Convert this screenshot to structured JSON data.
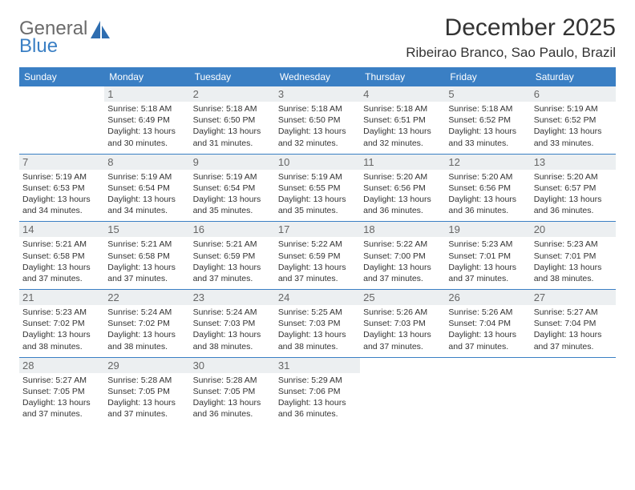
{
  "logo": {
    "general": "General",
    "blue": "Blue"
  },
  "title": "December 2025",
  "location": "Ribeirao Branco, Sao Paulo, Brazil",
  "colors": {
    "header_bg": "#3a7fc4",
    "header_text": "#ffffff",
    "daynum_bg": "#eceff1",
    "border": "#3a7fc4"
  },
  "weekdays": [
    "Sunday",
    "Monday",
    "Tuesday",
    "Wednesday",
    "Thursday",
    "Friday",
    "Saturday"
  ],
  "weeks": [
    [
      null,
      {
        "n": "1",
        "sr": "5:18 AM",
        "ss": "6:49 PM",
        "dl": "13 hours and 30 minutes."
      },
      {
        "n": "2",
        "sr": "5:18 AM",
        "ss": "6:50 PM",
        "dl": "13 hours and 31 minutes."
      },
      {
        "n": "3",
        "sr": "5:18 AM",
        "ss": "6:50 PM",
        "dl": "13 hours and 32 minutes."
      },
      {
        "n": "4",
        "sr": "5:18 AM",
        "ss": "6:51 PM",
        "dl": "13 hours and 32 minutes."
      },
      {
        "n": "5",
        "sr": "5:18 AM",
        "ss": "6:52 PM",
        "dl": "13 hours and 33 minutes."
      },
      {
        "n": "6",
        "sr": "5:19 AM",
        "ss": "6:52 PM",
        "dl": "13 hours and 33 minutes."
      }
    ],
    [
      {
        "n": "7",
        "sr": "5:19 AM",
        "ss": "6:53 PM",
        "dl": "13 hours and 34 minutes."
      },
      {
        "n": "8",
        "sr": "5:19 AM",
        "ss": "6:54 PM",
        "dl": "13 hours and 34 minutes."
      },
      {
        "n": "9",
        "sr": "5:19 AM",
        "ss": "6:54 PM",
        "dl": "13 hours and 35 minutes."
      },
      {
        "n": "10",
        "sr": "5:19 AM",
        "ss": "6:55 PM",
        "dl": "13 hours and 35 minutes."
      },
      {
        "n": "11",
        "sr": "5:20 AM",
        "ss": "6:56 PM",
        "dl": "13 hours and 36 minutes."
      },
      {
        "n": "12",
        "sr": "5:20 AM",
        "ss": "6:56 PM",
        "dl": "13 hours and 36 minutes."
      },
      {
        "n": "13",
        "sr": "5:20 AM",
        "ss": "6:57 PM",
        "dl": "13 hours and 36 minutes."
      }
    ],
    [
      {
        "n": "14",
        "sr": "5:21 AM",
        "ss": "6:58 PM",
        "dl": "13 hours and 37 minutes."
      },
      {
        "n": "15",
        "sr": "5:21 AM",
        "ss": "6:58 PM",
        "dl": "13 hours and 37 minutes."
      },
      {
        "n": "16",
        "sr": "5:21 AM",
        "ss": "6:59 PM",
        "dl": "13 hours and 37 minutes."
      },
      {
        "n": "17",
        "sr": "5:22 AM",
        "ss": "6:59 PM",
        "dl": "13 hours and 37 minutes."
      },
      {
        "n": "18",
        "sr": "5:22 AM",
        "ss": "7:00 PM",
        "dl": "13 hours and 37 minutes."
      },
      {
        "n": "19",
        "sr": "5:23 AM",
        "ss": "7:01 PM",
        "dl": "13 hours and 37 minutes."
      },
      {
        "n": "20",
        "sr": "5:23 AM",
        "ss": "7:01 PM",
        "dl": "13 hours and 38 minutes."
      }
    ],
    [
      {
        "n": "21",
        "sr": "5:23 AM",
        "ss": "7:02 PM",
        "dl": "13 hours and 38 minutes."
      },
      {
        "n": "22",
        "sr": "5:24 AM",
        "ss": "7:02 PM",
        "dl": "13 hours and 38 minutes."
      },
      {
        "n": "23",
        "sr": "5:24 AM",
        "ss": "7:03 PM",
        "dl": "13 hours and 38 minutes."
      },
      {
        "n": "24",
        "sr": "5:25 AM",
        "ss": "7:03 PM",
        "dl": "13 hours and 38 minutes."
      },
      {
        "n": "25",
        "sr": "5:26 AM",
        "ss": "7:03 PM",
        "dl": "13 hours and 37 minutes."
      },
      {
        "n": "26",
        "sr": "5:26 AM",
        "ss": "7:04 PM",
        "dl": "13 hours and 37 minutes."
      },
      {
        "n": "27",
        "sr": "5:27 AM",
        "ss": "7:04 PM",
        "dl": "13 hours and 37 minutes."
      }
    ],
    [
      {
        "n": "28",
        "sr": "5:27 AM",
        "ss": "7:05 PM",
        "dl": "13 hours and 37 minutes."
      },
      {
        "n": "29",
        "sr": "5:28 AM",
        "ss": "7:05 PM",
        "dl": "13 hours and 37 minutes."
      },
      {
        "n": "30",
        "sr": "5:28 AM",
        "ss": "7:05 PM",
        "dl": "13 hours and 36 minutes."
      },
      {
        "n": "31",
        "sr": "5:29 AM",
        "ss": "7:06 PM",
        "dl": "13 hours and 36 minutes."
      },
      null,
      null,
      null
    ]
  ],
  "labels": {
    "sunrise": "Sunrise:",
    "sunset": "Sunset:",
    "daylight": "Daylight:"
  }
}
